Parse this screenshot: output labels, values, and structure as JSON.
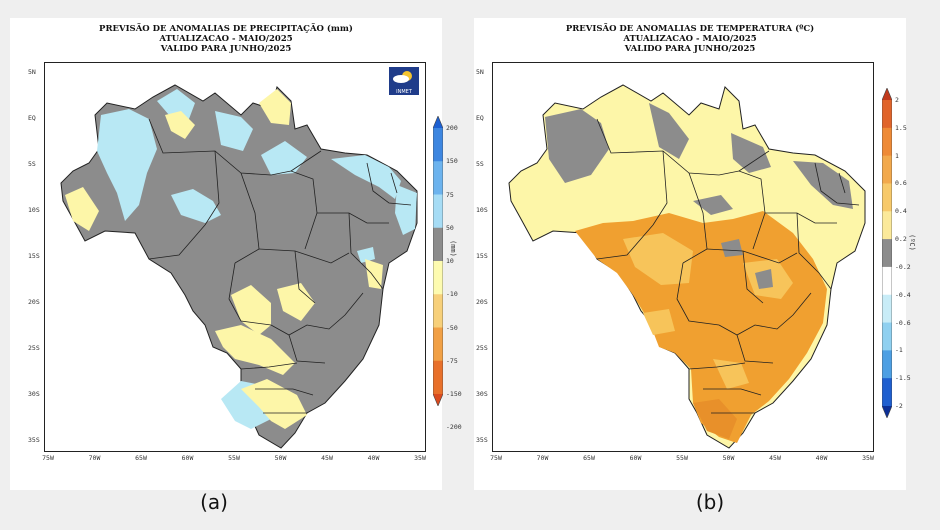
{
  "panel_a": {
    "title_line1": "PREVISÃO DE ANOMALIAS DE PRECIPITAÇÃO (mm)",
    "title_line2": "ATUALIZACAO - MAIO/2025",
    "title_line3": "VALIDO PARA JUNHO/2025",
    "unit": "(mm)",
    "logo_text": "INMET",
    "caption": "(a)",
    "colorbar_labels": [
      "200",
      "150",
      "75",
      "50",
      "10",
      "-10",
      "-50",
      "-75",
      "-150",
      "-200"
    ],
    "colorbar_colors": [
      "#1c5fd1",
      "#3d86e0",
      "#6cb3ee",
      "#a6dcf5",
      "#8c8c8c",
      "#fdfbb0",
      "#f7d07a",
      "#f1a045",
      "#e8702a",
      "#d94a1e"
    ]
  },
  "panel_b": {
    "title_line1": "PREVISÃO DE ANOMALIAS DE TEMPERATURA (ºC)",
    "title_line2": "ATUALIZACAO - MAIO/2025",
    "title_line3": "VALIDO PARA JUNHO/2025",
    "unit": "(ºC)",
    "caption": "(b)",
    "colorbar_labels": [
      "2",
      "1.5",
      "1",
      "0.6",
      "0.4",
      "0.2",
      "-0.2",
      "-0.4",
      "-0.6",
      "-1",
      "-1.5",
      "-2"
    ],
    "colorbar_colors": [
      "#c0391c",
      "#e0642a",
      "#ee8a36",
      "#f2a94c",
      "#f7c96a",
      "#fbe99a",
      "#8c8c8c",
      "#ffffff",
      "#c8ecf7",
      "#8fd0f0",
      "#4d9fe3",
      "#1f5fcf",
      "#0c2f96"
    ]
  },
  "axes": {
    "lat_labels": [
      "5N",
      "EQ",
      "5S",
      "10S",
      "15S",
      "20S",
      "25S",
      "30S",
      "35S"
    ],
    "lon_labels": [
      "75W",
      "70W",
      "65W",
      "60W",
      "55W",
      "50W",
      "45W",
      "40W",
      "35W"
    ]
  },
  "colors": {
    "gray": "#8c8c8c",
    "cyan": "#b8e8f4",
    "yellow": "#fdf6a8",
    "orange_light": "#f7c45a",
    "orange": "#f0a030",
    "orange_dark": "#e8902a",
    "border": "#222222"
  }
}
